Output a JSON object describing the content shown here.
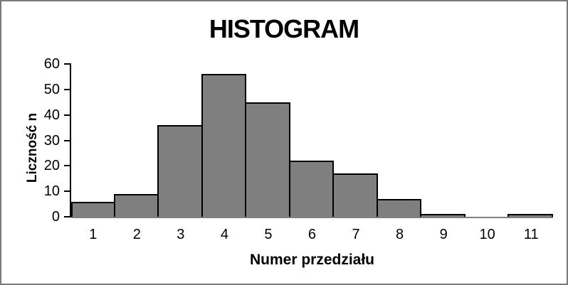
{
  "frame": {
    "border_color": "#7a7a7a",
    "background_color": "#ffffff"
  },
  "chart_data": {
    "type": "bar",
    "title": "HISTOGRAM",
    "xlabel": "Numer przedziału",
    "ylabel": "Liczność n",
    "categories": [
      "1",
      "2",
      "3",
      "4",
      "5",
      "6",
      "7",
      "8",
      "9",
      "10",
      "11"
    ],
    "values": [
      6,
      9,
      36,
      56,
      45,
      22,
      17,
      7,
      1,
      0,
      1
    ],
    "ylim": [
      0,
      60
    ],
    "yticks": [
      0,
      10,
      20,
      30,
      40,
      50,
      60
    ],
    "grid": false,
    "legend": "none",
    "bar_fill_color": "#7f7f7f",
    "bar_border_color": "#000000",
    "axis_color": "#000000",
    "baseline_color": "#808080"
  }
}
